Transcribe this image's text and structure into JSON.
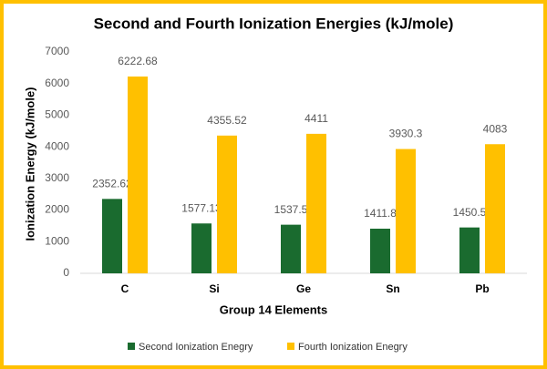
{
  "chart_data": {
    "type": "bar",
    "title": "Second and Fourth Ionization Energies (kJ/mole)",
    "x_label": "Group 14 Elements",
    "y_label": "Ionization Energy (kJ/mole)",
    "categories": [
      "C",
      "Si",
      "Ge",
      "Sn",
      "Pb"
    ],
    "series": [
      {
        "name": "Second Ionization Enegry",
        "color": "#1a6b2f",
        "values": [
          2352.62,
          1577.13,
          1537.5,
          1411.8,
          1450.5
        ]
      },
      {
        "name": "Fourth Ionization Enegry",
        "color": "#ffc000",
        "values": [
          6222.68,
          4355.52,
          4411,
          3930.3,
          4083
        ]
      }
    ],
    "ylim": [
      0,
      7000
    ],
    "yticks": [
      0,
      1000,
      2000,
      3000,
      4000,
      5000,
      6000,
      7000
    ],
    "grid": false,
    "legend": "bottom"
  }
}
